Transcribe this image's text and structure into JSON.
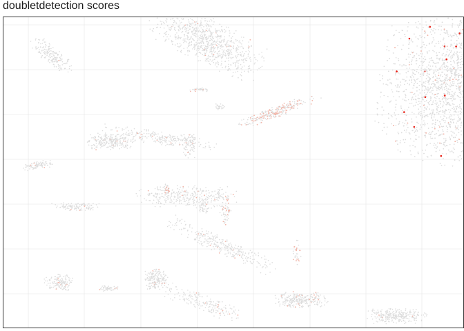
{
  "chart_data": {
    "type": "scatter",
    "title": "doubletdetection scores",
    "xlabel": "",
    "ylabel": "",
    "grid": true,
    "legend": "none",
    "colors": {
      "panel_border": "#333333",
      "grid": "#ebebeb",
      "low_score": "#dddddd",
      "mid_score": "#f2b5a8",
      "high_score": "#e8281e"
    },
    "clusters": [
      {
        "cx": 680,
        "cy": -130,
        "rx": 125,
        "ry": 110,
        "rot": -10,
        "n": 5200,
        "hot": 0.035,
        "red": 0.01
      },
      {
        "cx": 300,
        "cy": -60,
        "rx": 85,
        "ry": 32,
        "rot": -28,
        "n": 900,
        "hot": 0.02,
        "red": 0.0
      },
      {
        "cx": 160,
        "cy": -205,
        "rx": 32,
        "ry": 12,
        "rot": 0,
        "n": 260,
        "hot": 0.02,
        "red": 0.0
      },
      {
        "cx": 75,
        "cy": -80,
        "rx": 35,
        "ry": 12,
        "rot": -40,
        "n": 180,
        "hot": 0.01,
        "red": 0.0
      },
      {
        "cx": 400,
        "cy": -162,
        "rx": 55,
        "ry": 8,
        "rot": 20,
        "n": 260,
        "hot": 0.35,
        "red": 0.0
      },
      {
        "cx": 230,
        "cy": -200,
        "rx": 80,
        "ry": 10,
        "rot": -10,
        "n": 240,
        "hot": 0.05,
        "red": 0.0
      },
      {
        "cx": 270,
        "cy": -285,
        "rx": 70,
        "ry": 16,
        "rot": 0,
        "n": 330,
        "hot": 0.03,
        "red": 0.0
      },
      {
        "cx": 320,
        "cy": -355,
        "rx": 85,
        "ry": 12,
        "rot": -25,
        "n": 300,
        "hot": 0.03,
        "red": 0.0
      },
      {
        "cx": 225,
        "cy": -405,
        "rx": 18,
        "ry": 16,
        "rot": 0,
        "n": 180,
        "hot": 0.03,
        "red": 0.0
      },
      {
        "cx": 295,
        "cy": -440,
        "rx": 55,
        "ry": 12,
        "rot": -20,
        "n": 180,
        "hot": 0.03,
        "red": 0.0
      },
      {
        "cx": 435,
        "cy": -435,
        "rx": 38,
        "ry": 11,
        "rot": 0,
        "n": 260,
        "hot": 0.05,
        "red": 0.0
      },
      {
        "cx": 575,
        "cy": -458,
        "rx": 43,
        "ry": 11,
        "rot": 0,
        "n": 280,
        "hot": 0.01,
        "red": 0.0
      },
      {
        "cx": 85,
        "cy": -410,
        "rx": 20,
        "ry": 12,
        "rot": 0,
        "n": 140,
        "hot": 0.05,
        "red": 0.0
      },
      {
        "cx": 55,
        "cy": -240,
        "rx": 22,
        "ry": 6,
        "rot": 10,
        "n": 90,
        "hot": 0.02,
        "red": 0.0
      },
      {
        "cx": 110,
        "cy": -300,
        "rx": 35,
        "ry": 6,
        "rot": 0,
        "n": 110,
        "hot": 0.02,
        "red": 0.0
      },
      {
        "cx": 158,
        "cy": -418,
        "rx": 14,
        "ry": 4,
        "rot": 0,
        "n": 50,
        "hot": 0.02,
        "red": 0.0
      },
      {
        "cx": 290,
        "cy": -130,
        "rx": 15,
        "ry": 3,
        "rot": 0,
        "n": 40,
        "hot": 0.05,
        "red": 0.0
      },
      {
        "cx": 275,
        "cy": -210,
        "rx": 15,
        "ry": 18,
        "rot": 0,
        "n": 80,
        "hot": 0.03,
        "red": 0.0
      },
      {
        "cx": 295,
        "cy": -300,
        "rx": 7,
        "ry": 10,
        "rot": 0,
        "n": 40,
        "hot": 0.03,
        "red": 0.0
      },
      {
        "cx": 327,
        "cy": -305,
        "rx": 8,
        "ry": 22,
        "rot": 0,
        "n": 60,
        "hot": 0.3,
        "red": 0.0
      },
      {
        "cx": 240,
        "cy": -275,
        "rx": 5,
        "ry": 12,
        "rot": 0,
        "n": 30,
        "hot": 0.4,
        "red": 0.0
      },
      {
        "cx": 430,
        "cy": -365,
        "rx": 6,
        "ry": 18,
        "rot": 0,
        "n": 30,
        "hot": 0.45,
        "red": 0.0
      },
      {
        "cx": 318,
        "cy": -155,
        "rx": 8,
        "ry": 5,
        "rot": 0,
        "n": 25,
        "hot": 0.02,
        "red": 0.0
      }
    ]
  }
}
